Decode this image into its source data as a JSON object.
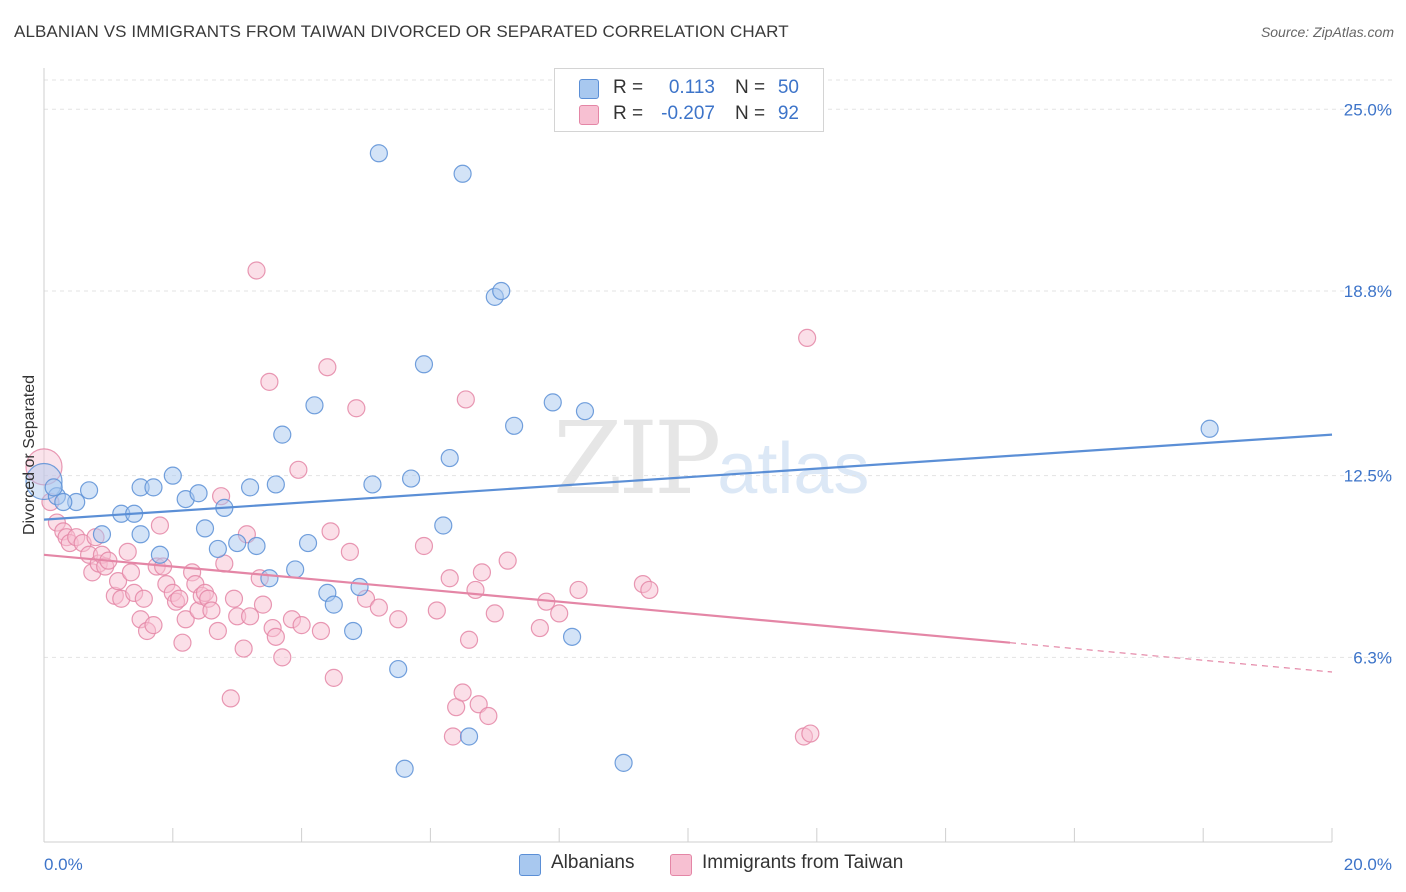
{
  "title": "ALBANIAN VS IMMIGRANTS FROM TAIWAN DIVORCED OR SEPARATED CORRELATION CHART",
  "source": "Source: ZipAtlas.com",
  "watermark": {
    "zip": "ZIP",
    "atlas": "atlas"
  },
  "legend": {
    "rows": [
      {
        "r_label": "R =",
        "r_value": "0.113",
        "n_label": "N =",
        "n_value": "50",
        "color": "#a8c8ef",
        "border": "#5b8fd6"
      },
      {
        "r_label": "R =",
        "r_value": "-0.207",
        "n_label": "N =",
        "n_value": "92",
        "color": "#f7c0d2",
        "border": "#e486a6"
      }
    ]
  },
  "bottom_legend": [
    {
      "label": "Albanians",
      "color": "#a8c8ef",
      "border": "#5b8fd6"
    },
    {
      "label": "Immigrants from Taiwan",
      "color": "#f7c0d2",
      "border": "#e486a6"
    }
  ],
  "chart_data": {
    "type": "scatter",
    "title": "ALBANIAN VS IMMIGRANTS FROM TAIWAN DIVORCED OR SEPARATED CORRELATION CHART",
    "xlabel": "",
    "ylabel": "Divorced or Separated",
    "xlim": [
      0,
      20
    ],
    "ylim": [
      0,
      26.0
    ],
    "x_tick_labels": [
      "0.0%",
      "20.0%"
    ],
    "y_ticks": [
      {
        "value": 6.3,
        "label": "6.3%"
      },
      {
        "value": 12.5,
        "label": "12.5%"
      },
      {
        "value": 18.8,
        "label": "18.8%"
      },
      {
        "value": 25.0,
        "label": "25.0%"
      }
    ],
    "grid": "horizontal dashed",
    "series": [
      {
        "name": "Albanians",
        "color": "#5b8fd6",
        "fill": "#a8c8ef",
        "trend": {
          "x": [
            0.0,
            20.0
          ],
          "y": [
            11.0,
            13.9
          ],
          "dashed_from": null
        },
        "points": [
          [
            0.0,
            12.3
          ],
          [
            0.2,
            11.8
          ],
          [
            0.5,
            11.6
          ],
          [
            0.7,
            12.0
          ],
          [
            0.9,
            10.5
          ],
          [
            1.2,
            11.2
          ],
          [
            1.4,
            11.2
          ],
          [
            1.5,
            10.5
          ],
          [
            1.5,
            12.1
          ],
          [
            1.7,
            12.1
          ],
          [
            1.8,
            9.8
          ],
          [
            2.0,
            12.5
          ],
          [
            2.2,
            11.7
          ],
          [
            2.4,
            11.9
          ],
          [
            2.5,
            10.7
          ],
          [
            2.7,
            10.0
          ],
          [
            2.8,
            11.4
          ],
          [
            3.0,
            10.2
          ],
          [
            3.2,
            12.1
          ],
          [
            3.3,
            10.1
          ],
          [
            3.5,
            9.0
          ],
          [
            3.6,
            12.2
          ],
          [
            3.7,
            13.9
          ],
          [
            3.9,
            9.3
          ],
          [
            4.1,
            10.2
          ],
          [
            4.2,
            14.9
          ],
          [
            4.4,
            8.5
          ],
          [
            4.5,
            8.1
          ],
          [
            4.8,
            7.2
          ],
          [
            4.9,
            8.7
          ],
          [
            5.1,
            12.2
          ],
          [
            5.2,
            23.5
          ],
          [
            5.5,
            5.9
          ],
          [
            5.6,
            2.5
          ],
          [
            5.7,
            12.4
          ],
          [
            5.9,
            16.3
          ],
          [
            6.2,
            10.8
          ],
          [
            6.3,
            13.1
          ],
          [
            6.5,
            22.8
          ],
          [
            6.6,
            3.6
          ],
          [
            7.0,
            18.6
          ],
          [
            7.1,
            18.8
          ],
          [
            7.3,
            14.2
          ],
          [
            7.9,
            15.0
          ],
          [
            8.2,
            7.0
          ],
          [
            8.4,
            14.7
          ],
          [
            9.0,
            2.7
          ],
          [
            18.1,
            14.1
          ],
          [
            0.15,
            12.1
          ],
          [
            0.3,
            11.6
          ]
        ]
      },
      {
        "name": "Immigrants from Taiwan",
        "color": "#e486a6",
        "fill": "#f7c0d2",
        "trend": {
          "x": [
            0.0,
            20.0
          ],
          "y": [
            9.8,
            5.8
          ],
          "dashed_from": 15.0
        },
        "points": [
          [
            0.0,
            12.8
          ],
          [
            0.1,
            11.6
          ],
          [
            0.2,
            10.9
          ],
          [
            0.3,
            10.6
          ],
          [
            0.35,
            10.4
          ],
          [
            0.4,
            10.2
          ],
          [
            0.5,
            10.4
          ],
          [
            0.6,
            10.2
          ],
          [
            0.7,
            9.8
          ],
          [
            0.75,
            9.2
          ],
          [
            0.8,
            10.4
          ],
          [
            0.85,
            9.5
          ],
          [
            0.9,
            9.8
          ],
          [
            0.95,
            9.4
          ],
          [
            1.0,
            9.6
          ],
          [
            1.1,
            8.4
          ],
          [
            1.15,
            8.9
          ],
          [
            1.2,
            8.3
          ],
          [
            1.3,
            9.9
          ],
          [
            1.35,
            9.2
          ],
          [
            1.4,
            8.5
          ],
          [
            1.5,
            7.6
          ],
          [
            1.55,
            8.3
          ],
          [
            1.6,
            7.2
          ],
          [
            1.7,
            7.4
          ],
          [
            1.75,
            9.4
          ],
          [
            1.8,
            10.8
          ],
          [
            1.85,
            9.4
          ],
          [
            1.9,
            8.8
          ],
          [
            2.0,
            8.5
          ],
          [
            2.05,
            8.2
          ],
          [
            2.1,
            8.3
          ],
          [
            2.15,
            6.8
          ],
          [
            2.2,
            7.6
          ],
          [
            2.3,
            9.2
          ],
          [
            2.35,
            8.8
          ],
          [
            2.4,
            7.9
          ],
          [
            2.45,
            8.4
          ],
          [
            2.5,
            8.5
          ],
          [
            2.55,
            8.3
          ],
          [
            2.6,
            7.9
          ],
          [
            2.7,
            7.2
          ],
          [
            2.75,
            11.8
          ],
          [
            2.8,
            9.5
          ],
          [
            2.9,
            4.9
          ],
          [
            2.95,
            8.3
          ],
          [
            3.0,
            7.7
          ],
          [
            3.1,
            6.6
          ],
          [
            3.15,
            10.5
          ],
          [
            3.2,
            7.7
          ],
          [
            3.3,
            19.5
          ],
          [
            3.35,
            9.0
          ],
          [
            3.4,
            8.1
          ],
          [
            3.5,
            15.7
          ],
          [
            3.55,
            7.3
          ],
          [
            3.6,
            7.0
          ],
          [
            3.7,
            6.3
          ],
          [
            3.85,
            7.6
          ],
          [
            3.95,
            12.7
          ],
          [
            4.0,
            7.4
          ],
          [
            4.3,
            7.2
          ],
          [
            4.4,
            16.2
          ],
          [
            4.45,
            10.6
          ],
          [
            4.5,
            5.6
          ],
          [
            4.75,
            9.9
          ],
          [
            4.85,
            14.8
          ],
          [
            5.0,
            8.3
          ],
          [
            5.2,
            8.0
          ],
          [
            5.5,
            7.6
          ],
          [
            5.9,
            10.1
          ],
          [
            6.1,
            7.9
          ],
          [
            6.3,
            9.0
          ],
          [
            6.35,
            3.6
          ],
          [
            6.4,
            4.6
          ],
          [
            6.5,
            5.1
          ],
          [
            6.55,
            15.1
          ],
          [
            6.6,
            6.9
          ],
          [
            6.7,
            8.6
          ],
          [
            6.75,
            4.7
          ],
          [
            6.8,
            9.2
          ],
          [
            6.9,
            4.3
          ],
          [
            7.0,
            7.8
          ],
          [
            7.2,
            9.6
          ],
          [
            7.7,
            7.3
          ],
          [
            7.8,
            8.2
          ],
          [
            8.0,
            7.8
          ],
          [
            8.3,
            8.6
          ],
          [
            9.3,
            8.8
          ],
          [
            9.4,
            8.6
          ],
          [
            11.8,
            3.6
          ],
          [
            11.9,
            3.7
          ],
          [
            11.85,
            17.2
          ]
        ]
      }
    ]
  }
}
